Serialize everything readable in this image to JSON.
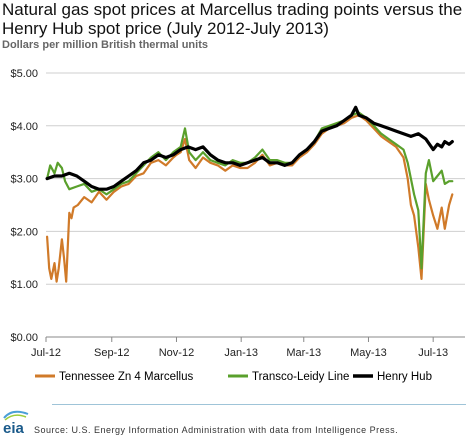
{
  "header": {
    "title": "Natural gas spot prices at Marcellus trading points versus the Henry Hub spot price (July 2012-July 2013)",
    "subtitle": "Dollars per million British thermal units"
  },
  "footer": {
    "logo_text": "eia",
    "source": "Source:  U.S. Energy Information Administration with data from Intelligence Press."
  },
  "chart_data": {
    "type": "line",
    "title": "Natural gas spot prices at Marcellus trading points versus the Henry Hub spot price (July 2012-July 2013)",
    "ylabel": "Dollars per million British thermal units",
    "xlabel": "",
    "ylim": [
      0,
      5
    ],
    "xlim": [
      "2012-07-01",
      "2013-07-31"
    ],
    "y_ticks": [
      0,
      1,
      2,
      3,
      4,
      5
    ],
    "y_tick_labels": [
      "$0.00",
      "$1.00",
      "$2.00",
      "$3.00",
      "$4.00",
      "$5.00"
    ],
    "x_tick_dates": [
      "2012-07-01",
      "2012-09-01",
      "2012-11-01",
      "2013-01-01",
      "2013-03-01",
      "2013-05-01",
      "2013-07-01"
    ],
    "x_tick_labels": [
      "Jul-12",
      "Sep-12",
      "Nov-12",
      "Jan-13",
      "Mar-13",
      "May-13",
      "Jul-13"
    ],
    "grid": "horizontal",
    "legend_position": "bottom",
    "series": [
      {
        "name": "Tennessee  Zn 4 Marcellus",
        "color": "#d07a29",
        "points": [
          [
            "2012-07-02",
            1.9
          ],
          [
            "2012-07-04",
            1.3
          ],
          [
            "2012-07-06",
            1.1
          ],
          [
            "2012-07-09",
            1.4
          ],
          [
            "2012-07-11",
            1.05
          ],
          [
            "2012-07-13",
            1.3
          ],
          [
            "2012-07-16",
            1.85
          ],
          [
            "2012-07-18",
            1.5
          ],
          [
            "2012-07-20",
            1.05
          ],
          [
            "2012-07-23",
            2.35
          ],
          [
            "2012-07-25",
            2.25
          ],
          [
            "2012-07-27",
            2.45
          ],
          [
            "2012-07-31",
            2.5
          ],
          [
            "2012-08-06",
            2.65
          ],
          [
            "2012-08-13",
            2.55
          ],
          [
            "2012-08-20",
            2.75
          ],
          [
            "2012-08-27",
            2.6
          ],
          [
            "2012-09-03",
            2.75
          ],
          [
            "2012-09-10",
            2.85
          ],
          [
            "2012-09-17",
            2.9
          ],
          [
            "2012-09-24",
            3.05
          ],
          [
            "2012-10-01",
            3.1
          ],
          [
            "2012-10-08",
            3.3
          ],
          [
            "2012-10-15",
            3.35
          ],
          [
            "2012-10-22",
            3.25
          ],
          [
            "2012-10-29",
            3.4
          ],
          [
            "2012-11-01",
            3.45
          ],
          [
            "2012-11-05",
            3.5
          ],
          [
            "2012-11-09",
            3.75
          ],
          [
            "2012-11-13",
            3.35
          ],
          [
            "2012-11-19",
            3.2
          ],
          [
            "2012-11-26",
            3.4
          ],
          [
            "2012-12-03",
            3.3
          ],
          [
            "2012-12-10",
            3.25
          ],
          [
            "2012-12-17",
            3.15
          ],
          [
            "2012-12-24",
            3.25
          ],
          [
            "2012-12-31",
            3.2
          ],
          [
            "2013-01-07",
            3.2
          ],
          [
            "2013-01-14",
            3.3
          ],
          [
            "2013-01-21",
            3.45
          ],
          [
            "2013-01-28",
            3.25
          ],
          [
            "2013-02-04",
            3.3
          ],
          [
            "2013-02-11",
            3.25
          ],
          [
            "2013-02-18",
            3.25
          ],
          [
            "2013-02-25",
            3.4
          ],
          [
            "2013-03-04",
            3.5
          ],
          [
            "2013-03-11",
            3.65
          ],
          [
            "2013-03-18",
            3.85
          ],
          [
            "2013-03-25",
            3.95
          ],
          [
            "2013-04-01",
            4.0
          ],
          [
            "2013-04-08",
            4.05
          ],
          [
            "2013-04-15",
            4.15
          ],
          [
            "2013-04-22",
            4.2
          ],
          [
            "2013-04-29",
            4.1
          ],
          [
            "2013-05-06",
            3.95
          ],
          [
            "2013-05-13",
            3.8
          ],
          [
            "2013-05-20",
            3.7
          ],
          [
            "2013-05-27",
            3.6
          ],
          [
            "2013-06-03",
            3.4
          ],
          [
            "2013-06-07",
            3.0
          ],
          [
            "2013-06-10",
            2.5
          ],
          [
            "2013-06-13",
            2.3
          ],
          [
            "2013-06-17",
            1.7
          ],
          [
            "2013-06-20",
            1.1
          ],
          [
            "2013-06-24",
            2.9
          ],
          [
            "2013-06-27",
            2.6
          ],
          [
            "2013-07-01",
            2.3
          ],
          [
            "2013-07-05",
            2.05
          ],
          [
            "2013-07-09",
            2.45
          ],
          [
            "2013-07-12",
            2.05
          ],
          [
            "2013-07-16",
            2.5
          ],
          [
            "2013-07-19",
            2.7
          ]
        ]
      },
      {
        "name": "Transco-Leidy Line",
        "color": "#5aa02c",
        "points": [
          [
            "2012-07-02",
            3.0
          ],
          [
            "2012-07-05",
            3.25
          ],
          [
            "2012-07-09",
            3.1
          ],
          [
            "2012-07-12",
            3.3
          ],
          [
            "2012-07-16",
            3.2
          ],
          [
            "2012-07-19",
            2.95
          ],
          [
            "2012-07-23",
            2.8
          ],
          [
            "2012-07-30",
            2.85
          ],
          [
            "2012-08-06",
            2.9
          ],
          [
            "2012-08-13",
            2.75
          ],
          [
            "2012-08-20",
            2.8
          ],
          [
            "2012-08-27",
            2.7
          ],
          [
            "2012-09-03",
            2.8
          ],
          [
            "2012-09-10",
            2.9
          ],
          [
            "2012-09-17",
            2.95
          ],
          [
            "2012-09-24",
            3.1
          ],
          [
            "2012-10-01",
            3.25
          ],
          [
            "2012-10-08",
            3.4
          ],
          [
            "2012-10-15",
            3.5
          ],
          [
            "2012-10-22",
            3.35
          ],
          [
            "2012-10-29",
            3.5
          ],
          [
            "2012-11-05",
            3.6
          ],
          [
            "2012-11-09",
            3.95
          ],
          [
            "2012-11-13",
            3.5
          ],
          [
            "2012-11-19",
            3.35
          ],
          [
            "2012-11-26",
            3.5
          ],
          [
            "2012-12-03",
            3.35
          ],
          [
            "2012-12-10",
            3.3
          ],
          [
            "2012-12-17",
            3.25
          ],
          [
            "2012-12-24",
            3.35
          ],
          [
            "2012-12-31",
            3.3
          ],
          [
            "2013-01-07",
            3.3
          ],
          [
            "2013-01-14",
            3.4
          ],
          [
            "2013-01-21",
            3.55
          ],
          [
            "2013-01-28",
            3.35
          ],
          [
            "2013-02-04",
            3.35
          ],
          [
            "2013-02-11",
            3.3
          ],
          [
            "2013-02-18",
            3.3
          ],
          [
            "2013-02-25",
            3.45
          ],
          [
            "2013-03-04",
            3.55
          ],
          [
            "2013-03-11",
            3.7
          ],
          [
            "2013-03-18",
            3.95
          ],
          [
            "2013-03-25",
            4.0
          ],
          [
            "2013-04-01",
            4.05
          ],
          [
            "2013-04-08",
            4.1
          ],
          [
            "2013-04-15",
            4.2
          ],
          [
            "2013-04-22",
            4.25
          ],
          [
            "2013-04-29",
            4.15
          ],
          [
            "2013-05-06",
            4.0
          ],
          [
            "2013-05-13",
            3.85
          ],
          [
            "2013-05-20",
            3.75
          ],
          [
            "2013-05-27",
            3.65
          ],
          [
            "2013-06-03",
            3.55
          ],
          [
            "2013-06-07",
            3.3
          ],
          [
            "2013-06-10",
            3.0
          ],
          [
            "2013-06-13",
            2.7
          ],
          [
            "2013-06-17",
            2.4
          ],
          [
            "2013-06-20",
            1.3
          ],
          [
            "2013-06-24",
            3.1
          ],
          [
            "2013-06-27",
            3.35
          ],
          [
            "2013-07-01",
            2.95
          ],
          [
            "2013-07-05",
            3.05
          ],
          [
            "2013-07-09",
            3.15
          ],
          [
            "2013-07-12",
            2.9
          ],
          [
            "2013-07-16",
            2.95
          ],
          [
            "2013-07-19",
            2.95
          ]
        ]
      },
      {
        "name": "Henry Hub",
        "color": "#000000",
        "points": [
          [
            "2012-07-02",
            3.0
          ],
          [
            "2012-07-09",
            3.05
          ],
          [
            "2012-07-16",
            3.05
          ],
          [
            "2012-07-23",
            3.1
          ],
          [
            "2012-07-30",
            3.05
          ],
          [
            "2012-08-06",
            2.95
          ],
          [
            "2012-08-13",
            2.85
          ],
          [
            "2012-08-20",
            2.8
          ],
          [
            "2012-08-27",
            2.8
          ],
          [
            "2012-09-03",
            2.85
          ],
          [
            "2012-09-10",
            2.95
          ],
          [
            "2012-09-17",
            3.05
          ],
          [
            "2012-09-24",
            3.15
          ],
          [
            "2012-10-01",
            3.3
          ],
          [
            "2012-10-08",
            3.35
          ],
          [
            "2012-10-15",
            3.45
          ],
          [
            "2012-10-22",
            3.4
          ],
          [
            "2012-10-29",
            3.45
          ],
          [
            "2012-11-05",
            3.55
          ],
          [
            "2012-11-12",
            3.6
          ],
          [
            "2012-11-19",
            3.55
          ],
          [
            "2012-11-26",
            3.6
          ],
          [
            "2012-12-03",
            3.45
          ],
          [
            "2012-12-10",
            3.35
          ],
          [
            "2012-12-17",
            3.3
          ],
          [
            "2012-12-24",
            3.3
          ],
          [
            "2012-12-31",
            3.25
          ],
          [
            "2013-01-07",
            3.3
          ],
          [
            "2013-01-14",
            3.35
          ],
          [
            "2013-01-21",
            3.4
          ],
          [
            "2013-01-28",
            3.3
          ],
          [
            "2013-02-04",
            3.3
          ],
          [
            "2013-02-11",
            3.25
          ],
          [
            "2013-02-18",
            3.3
          ],
          [
            "2013-02-25",
            3.45
          ],
          [
            "2013-03-04",
            3.55
          ],
          [
            "2013-03-11",
            3.7
          ],
          [
            "2013-03-18",
            3.9
          ],
          [
            "2013-03-25",
            3.95
          ],
          [
            "2013-04-01",
            4.0
          ],
          [
            "2013-04-08",
            4.1
          ],
          [
            "2013-04-15",
            4.2
          ],
          [
            "2013-04-19",
            4.35
          ],
          [
            "2013-04-22",
            4.2
          ],
          [
            "2013-04-29",
            4.15
          ],
          [
            "2013-05-06",
            4.05
          ],
          [
            "2013-05-13",
            4.0
          ],
          [
            "2013-05-20",
            3.95
          ],
          [
            "2013-05-27",
            3.9
          ],
          [
            "2013-06-03",
            3.85
          ],
          [
            "2013-06-10",
            3.8
          ],
          [
            "2013-06-17",
            3.85
          ],
          [
            "2013-06-24",
            3.75
          ],
          [
            "2013-07-01",
            3.55
          ],
          [
            "2013-07-05",
            3.65
          ],
          [
            "2013-07-09",
            3.6
          ],
          [
            "2013-07-12",
            3.7
          ],
          [
            "2013-07-16",
            3.65
          ],
          [
            "2013-07-19",
            3.7
          ]
        ]
      }
    ]
  }
}
